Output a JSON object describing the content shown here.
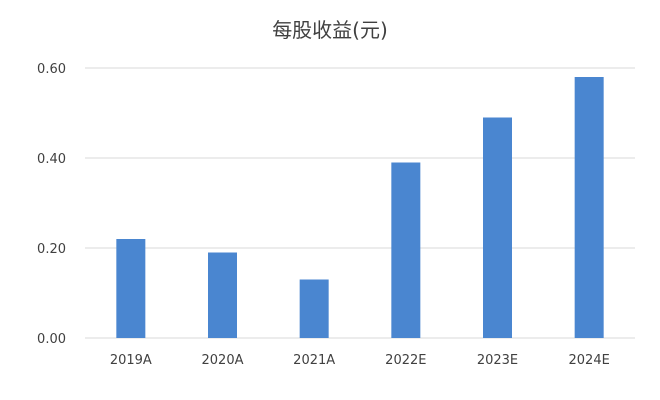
{
  "chart_data": {
    "type": "bar",
    "title": "每股收益(元)",
    "xlabel": "",
    "ylabel": "",
    "categories": [
      "2019A",
      "2020A",
      "2021A",
      "2022E",
      "2023E",
      "2024E"
    ],
    "values": [
      0.22,
      0.19,
      0.13,
      0.39,
      0.49,
      0.58
    ],
    "ylim": [
      0,
      0.6
    ],
    "yticks": [
      "0.00",
      "0.20",
      "0.40",
      "0.60"
    ],
    "grid": true,
    "bar_color": "#4a86d0",
    "grid_color": "#d9d9d9"
  }
}
